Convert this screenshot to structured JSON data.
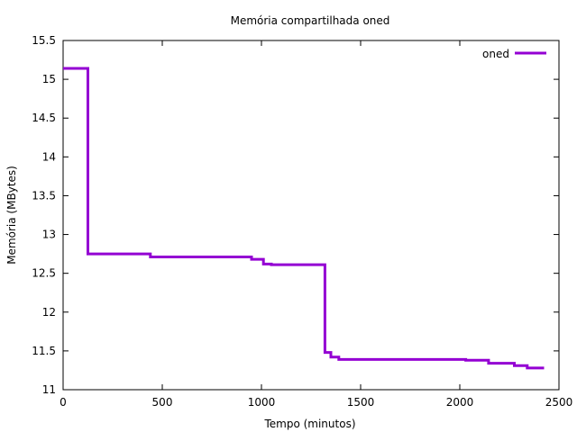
{
  "chart_data": {
    "type": "line",
    "title": "Memória compartilhada oned",
    "xlabel": "Tempo (minutos)",
    "ylabel": "Memória (MBytes)",
    "xlim": [
      0,
      2500
    ],
    "ylim": [
      11,
      15.5
    ],
    "x_ticks": [
      0,
      500,
      1000,
      1500,
      2000,
      2500
    ],
    "x_tick_labels": [
      "0",
      "500",
      "1000",
      "1500",
      "2000",
      "2500"
    ],
    "y_ticks": [
      11,
      11.5,
      12,
      12.5,
      13,
      13.5,
      14,
      14.5,
      15,
      15.5
    ],
    "y_tick_labels": [
      "11",
      "11.5",
      "12",
      "12.5",
      "13",
      "13.5",
      "14",
      "14.5",
      "15",
      "15.5"
    ],
    "grid": false,
    "legend_position": "top-right",
    "step": true,
    "series": [
      {
        "name": "oned",
        "color": "#9400d3",
        "x": [
          0,
          125,
          440,
          950,
          1010,
          1050,
          1320,
          1350,
          1390,
          2030,
          2145,
          2275,
          2340,
          2425
        ],
        "y": [
          15.14,
          12.75,
          12.71,
          12.68,
          12.62,
          12.61,
          11.48,
          11.42,
          11.39,
          11.38,
          11.34,
          11.31,
          11.28,
          11.28
        ]
      }
    ]
  }
}
